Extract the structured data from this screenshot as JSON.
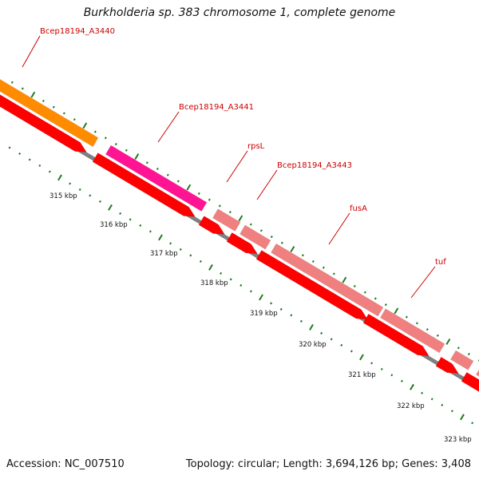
{
  "title": "Burkholderia sp. 383 chromosome 1, complete genome",
  "footer": {
    "accession": "Accession: NC_007510",
    "summary": "Topology: circular; Length: 3,694,126 bp; Genes: 3,408"
  },
  "colors": {
    "backbone": "#808080",
    "cds": "#ff0000",
    "label": "#cc0000",
    "tick": "#1f7a1f"
  },
  "genes": [
    {
      "name": "Bcep18194_A3440",
      "color": "#ff8c00"
    },
    {
      "name": "Bcep18194_A3441",
      "color": "#ff1493"
    },
    {
      "name": "rpsL",
      "color": "#f08080"
    },
    {
      "name": "Bcep18194_A3443",
      "color": "#f08080"
    },
    {
      "name": "fusA",
      "color": "#f08080"
    },
    {
      "name": "tuf",
      "color": "#f08080"
    },
    {
      "name": "",
      "color": "#f08080"
    },
    {
      "name": "",
      "color": "#f08080"
    }
  ],
  "kbp_labels": [
    "315 kbp",
    "316 kbp",
    "317 kbp",
    "318 kbp",
    "319 kbp",
    "320 kbp",
    "321 kbp",
    "322 kbp",
    "323 kbp"
  ]
}
